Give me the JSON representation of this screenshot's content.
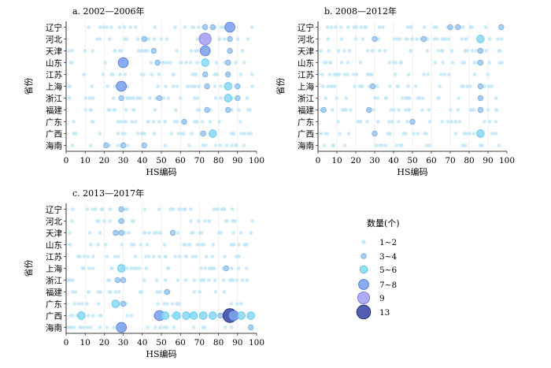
{
  "chart_data": [
    {
      "type": "scatter",
      "title": "a. 2002—2006年",
      "xlabel": "HS编码",
      "ylabel": "省份",
      "xlim": [
        0,
        100
      ],
      "xticks": [
        "0",
        "10",
        "20",
        "30",
        "40",
        "50",
        "60",
        "70",
        "80",
        "90",
        "100"
      ],
      "categories": [
        "辽宁",
        "河北",
        "天津",
        "山东",
        "江苏",
        "上海",
        "浙江",
        "福建",
        "广东",
        "广西",
        "海南"
      ],
      "points": [
        {
          "x": 73,
          "y": "辽宁",
          "size": "3-4"
        },
        {
          "x": 86,
          "y": "辽宁",
          "size": "7-8"
        },
        {
          "x": 77,
          "y": "辽宁",
          "size": "3-4"
        },
        {
          "x": 41,
          "y": "河北",
          "size": "3-4"
        },
        {
          "x": 73,
          "y": "河北",
          "size": "9"
        },
        {
          "x": 86,
          "y": "河北",
          "size": "3-4"
        },
        {
          "x": 46,
          "y": "天津",
          "size": "3-4"
        },
        {
          "x": 73,
          "y": "天津",
          "size": "7-8"
        },
        {
          "x": 86,
          "y": "天津",
          "size": "3-4"
        },
        {
          "x": 30,
          "y": "山东",
          "size": "7-8"
        },
        {
          "x": 48,
          "y": "山东",
          "size": "3-4"
        },
        {
          "x": 73,
          "y": "山东",
          "size": "5-6"
        },
        {
          "x": 85,
          "y": "山东",
          "size": "3-4"
        },
        {
          "x": 73,
          "y": "江苏",
          "size": "3-4"
        },
        {
          "x": 85,
          "y": "江苏",
          "size": "3-4"
        },
        {
          "x": 29,
          "y": "上海",
          "size": "7-8"
        },
        {
          "x": 74,
          "y": "上海",
          "size": "3-4"
        },
        {
          "x": 85,
          "y": "上海",
          "size": "5-6"
        },
        {
          "x": 90,
          "y": "上海",
          "size": "3-4"
        },
        {
          "x": 29,
          "y": "浙江",
          "size": "3-4"
        },
        {
          "x": 49,
          "y": "浙江",
          "size": "3-4"
        },
        {
          "x": 85,
          "y": "浙江",
          "size": "5-6"
        },
        {
          "x": 90,
          "y": "浙江",
          "size": "3-4"
        },
        {
          "x": 74,
          "y": "福建",
          "size": "3-4"
        },
        {
          "x": 85,
          "y": "福建",
          "size": "3-4"
        },
        {
          "x": 62,
          "y": "广东",
          "size": "3-4"
        },
        {
          "x": 72,
          "y": "广西",
          "size": "3-4"
        },
        {
          "x": 77,
          "y": "广西",
          "size": "5-6"
        },
        {
          "x": 21,
          "y": "海南",
          "size": "3-4"
        },
        {
          "x": 30,
          "y": "海南",
          "size": "3-4"
        },
        {
          "x": 41,
          "y": "海南",
          "size": "3-4"
        }
      ]
    },
    {
      "type": "scatter",
      "title": "b. 2008—2012年",
      "xlabel": "HS编码",
      "ylabel": "省份",
      "xlim": [
        0,
        100
      ],
      "xticks": [
        "0",
        "10",
        "20",
        "30",
        "40",
        "50",
        "60",
        "70",
        "80",
        "90",
        "100"
      ],
      "categories": [
        "辽宁",
        "河北",
        "天津",
        "山东",
        "江苏",
        "上海",
        "浙江",
        "福建",
        "广东",
        "广西",
        "海南"
      ],
      "points": [
        {
          "x": 70,
          "y": "辽宁",
          "size": "3-4"
        },
        {
          "x": 74,
          "y": "辽宁",
          "size": "3-4"
        },
        {
          "x": 97,
          "y": "辽宁",
          "size": "3-4"
        },
        {
          "x": 30,
          "y": "河北",
          "size": "3-4"
        },
        {
          "x": 56,
          "y": "河北",
          "size": "3-4"
        },
        {
          "x": 86,
          "y": "河北",
          "size": "5-6"
        },
        {
          "x": 86,
          "y": "天津",
          "size": "3-4"
        },
        {
          "x": 86,
          "y": "山东",
          "size": "3-4"
        },
        {
          "x": 29,
          "y": "上海",
          "size": "3-4"
        },
        {
          "x": 86,
          "y": "上海",
          "size": "3-4"
        },
        {
          "x": 86,
          "y": "浙江",
          "size": "3-4"
        },
        {
          "x": 3,
          "y": "福建",
          "size": "3-4"
        },
        {
          "x": 27,
          "y": "福建",
          "size": "3-4"
        },
        {
          "x": 86,
          "y": "福建",
          "size": "3-4"
        },
        {
          "x": 50,
          "y": "广东",
          "size": "3-4"
        },
        {
          "x": 30,
          "y": "广西",
          "size": "3-4"
        },
        {
          "x": 86,
          "y": "广西",
          "size": "5-6"
        }
      ]
    },
    {
      "type": "scatter",
      "title": "c. 2013—2017年",
      "xlabel": "HS编码",
      "ylabel": "省份",
      "xlim": [
        0,
        100
      ],
      "xticks": [
        "0",
        "10",
        "20",
        "30",
        "40",
        "50",
        "60",
        "70",
        "80",
        "90",
        "100"
      ],
      "categories": [
        "辽宁",
        "河北",
        "天津",
        "山东",
        "江苏",
        "上海",
        "浙江",
        "福建",
        "广东",
        "广西",
        "海南"
      ],
      "points": [
        {
          "x": 29,
          "y": "辽宁",
          "size": "3-4"
        },
        {
          "x": 29,
          "y": "河北",
          "size": "3-4"
        },
        {
          "x": 26,
          "y": "天津",
          "size": "3-4"
        },
        {
          "x": 29,
          "y": "天津",
          "size": "3-4"
        },
        {
          "x": 56,
          "y": "天津",
          "size": "3-4"
        },
        {
          "x": 29,
          "y": "上海",
          "size": "5-6"
        },
        {
          "x": 84,
          "y": "上海",
          "size": "3-4"
        },
        {
          "x": 27,
          "y": "浙江",
          "size": "3-4"
        },
        {
          "x": 30,
          "y": "浙江",
          "size": "3-4"
        },
        {
          "x": 53,
          "y": "福建",
          "size": "3-4"
        },
        {
          "x": 26,
          "y": "广东",
          "size": "5-6"
        },
        {
          "x": 30,
          "y": "广东",
          "size": "3-4"
        },
        {
          "x": 8,
          "y": "广西",
          "size": "5-6"
        },
        {
          "x": 49,
          "y": "广西",
          "size": "7-8"
        },
        {
          "x": 52,
          "y": "广西",
          "size": "5-6"
        },
        {
          "x": 58,
          "y": "广西",
          "size": "5-6"
        },
        {
          "x": 63,
          "y": "广西",
          "size": "5-6"
        },
        {
          "x": 67,
          "y": "广西",
          "size": "5-6"
        },
        {
          "x": 72,
          "y": "广西",
          "size": "5-6"
        },
        {
          "x": 77,
          "y": "广西",
          "size": "5-6"
        },
        {
          "x": 81,
          "y": "广西",
          "size": "3-4"
        },
        {
          "x": 86,
          "y": "广西",
          "size": "13"
        },
        {
          "x": 88,
          "y": "广西",
          "size": "7-8"
        },
        {
          "x": 92,
          "y": "广西",
          "size": "5-6"
        },
        {
          "x": 97,
          "y": "广西",
          "size": "5-6"
        },
        {
          "x": 29,
          "y": "海南",
          "size": "7-8"
        },
        {
          "x": 97,
          "y": "海南",
          "size": "3-4"
        }
      ]
    }
  ],
  "legend": {
    "title": "数量(个)",
    "items": [
      {
        "label": "1~2",
        "key": "1-2"
      },
      {
        "label": "3~4",
        "key": "3-4"
      },
      {
        "label": "5~6",
        "key": "5-6"
      },
      {
        "label": "7~8",
        "key": "7-8"
      },
      {
        "label": "9",
        "key": "9"
      },
      {
        "label": "13",
        "key": "13"
      }
    ]
  },
  "size_styles": {
    "1-2": {
      "fill": "#bfe6f8",
      "stroke": "#bfe6f8"
    },
    "3-4": {
      "fill": "#9fc9ee",
      "stroke": "#7fb0e0"
    },
    "5-6": {
      "fill": "#8fdcf6",
      "stroke": "#4fc3ec"
    },
    "7-8": {
      "fill": "#7ea3ee",
      "stroke": "#4f72d6"
    },
    "9": {
      "fill": "#a7a3f2",
      "stroke": "#7a74dc"
    },
    "13": {
      "fill": "#3f4ca6",
      "stroke": "#1c2670"
    }
  }
}
